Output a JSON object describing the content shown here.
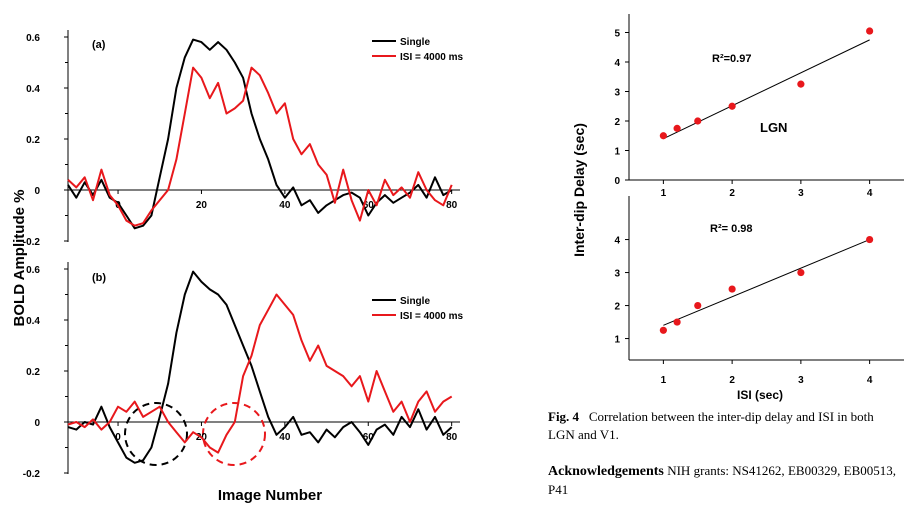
{
  "colors": {
    "single": "#000000",
    "isi": "#e8181c",
    "points": "#e8181c",
    "circle_black": "#000000",
    "circle_red": "#e8181c"
  },
  "left": {
    "ylabel": "BOLD Amplitude %",
    "xlabel": "Image Number",
    "panel_a": {
      "label": "(a)",
      "legend": [
        "Single",
        "ISI = 4000 ms"
      ],
      "yticks": [
        "0.6",
        "0.4",
        "0.2",
        "0",
        "-0.2"
      ],
      "xticks": [
        "0",
        "20",
        "40",
        "60",
        "80"
      ]
    },
    "panel_b": {
      "label": "(b)",
      "legend": [
        "Single",
        "ISI = 4000 ms"
      ],
      "yticks": [
        "0.6",
        "0.4",
        "0.2",
        "0",
        "-0.2"
      ],
      "xticks": [
        "0",
        "20",
        "40",
        "60",
        "80"
      ]
    }
  },
  "right": {
    "ylabel": "Inter-dip Delay (sec)",
    "xlabel": "ISI (sec)",
    "top": {
      "r2": "R²=0.97",
      "label": "LGN",
      "yticks": [
        "5",
        "4",
        "3",
        "2",
        "1",
        "0"
      ],
      "xticks": [
        "1",
        "2",
        "3",
        "4"
      ]
    },
    "bottom": {
      "r2": "R²= 0.98",
      "yticks": [
        "4",
        "3",
        "2",
        "1"
      ],
      "xticks": [
        "1",
        "2",
        "3",
        "4"
      ]
    }
  },
  "caption": {
    "fig": "Fig. 4",
    "text": "Correlation between the inter-dip delay and ISI in both LGN and V1."
  },
  "ack": {
    "title": "Acknowledgements",
    "text": "NIH grants: NS41262, EB00329, EB00513, P41"
  },
  "chart_data": [
    {
      "type": "line",
      "panel": "(a)",
      "ylabel": "BOLD Amplitude %",
      "xlabel": "Image Number",
      "xlim": [
        -12,
        82
      ],
      "ylim": [
        -0.22,
        0.65
      ],
      "series": [
        {
          "name": "Single",
          "color": "#000000",
          "x": [
            -12,
            -10,
            -8,
            -6,
            -4,
            -2,
            0,
            2,
            4,
            6,
            8,
            10,
            12,
            14,
            16,
            18,
            20,
            22,
            24,
            26,
            28,
            30,
            32,
            34,
            36,
            38,
            40,
            42,
            44,
            46,
            48,
            50,
            52,
            54,
            56,
            58,
            60,
            62,
            64,
            66,
            68,
            70,
            72,
            74,
            76,
            78,
            80
          ],
          "y": [
            0.02,
            -0.03,
            0.03,
            -0.02,
            0.04,
            -0.03,
            -0.05,
            -0.1,
            -0.15,
            -0.14,
            -0.1,
            0.05,
            0.2,
            0.4,
            0.52,
            0.59,
            0.58,
            0.55,
            0.58,
            0.55,
            0.5,
            0.44,
            0.3,
            0.2,
            0.12,
            0.02,
            -0.03,
            0.01,
            -0.06,
            -0.04,
            -0.09,
            -0.06,
            -0.04,
            -0.02,
            -0.01,
            -0.03,
            -0.1,
            -0.05,
            -0.02,
            -0.05,
            -0.03,
            -0.01,
            0.02,
            -0.03,
            0.05,
            -0.02,
            0.0
          ]
        },
        {
          "name": "ISI = 4000 ms",
          "color": "#e8181c",
          "x": [
            -12,
            -10,
            -8,
            -6,
            -4,
            -2,
            0,
            2,
            4,
            6,
            8,
            10,
            12,
            14,
            16,
            18,
            20,
            22,
            24,
            26,
            28,
            30,
            32,
            34,
            36,
            38,
            40,
            42,
            44,
            46,
            48,
            50,
            52,
            54,
            56,
            58,
            60,
            62,
            64,
            66,
            68,
            70,
            72,
            74,
            76,
            78,
            80
          ],
          "y": [
            0.04,
            0.01,
            0.05,
            -0.04,
            0.08,
            -0.02,
            -0.06,
            -0.12,
            -0.14,
            -0.13,
            -0.08,
            -0.04,
            0.0,
            0.12,
            0.3,
            0.48,
            0.44,
            0.36,
            0.42,
            0.3,
            0.32,
            0.35,
            0.48,
            0.45,
            0.38,
            0.3,
            0.34,
            0.2,
            0.14,
            0.18,
            0.1,
            0.06,
            -0.05,
            0.08,
            -0.04,
            -0.12,
            0.0,
            -0.06,
            0.04,
            -0.02,
            0.01,
            -0.03,
            0.07,
            0.0,
            -0.04,
            -0.06,
            0.02
          ]
        }
      ]
    },
    {
      "type": "line",
      "panel": "(b)",
      "ylabel": "BOLD Amplitude %",
      "xlabel": "Image Number",
      "xlim": [
        -12,
        82
      ],
      "ylim": [
        -0.22,
        0.65
      ],
      "series": [
        {
          "name": "Single",
          "color": "#000000",
          "x": [
            -12,
            -10,
            -8,
            -6,
            -4,
            -2,
            0,
            2,
            4,
            6,
            8,
            10,
            12,
            14,
            16,
            18,
            20,
            22,
            24,
            26,
            28,
            30,
            32,
            34,
            36,
            38,
            40,
            42,
            44,
            46,
            48,
            50,
            52,
            54,
            56,
            58,
            60,
            62,
            64,
            66,
            68,
            70,
            72,
            74,
            76,
            78,
            80
          ],
          "y": [
            -0.02,
            -0.03,
            0.0,
            -0.01,
            0.06,
            -0.02,
            -0.08,
            -0.14,
            -0.16,
            -0.15,
            -0.1,
            0.02,
            0.15,
            0.35,
            0.5,
            0.59,
            0.55,
            0.52,
            0.5,
            0.46,
            0.38,
            0.3,
            0.22,
            0.12,
            0.02,
            -0.05,
            -0.02,
            0.02,
            -0.05,
            -0.04,
            -0.08,
            -0.03,
            -0.06,
            -0.02,
            0.0,
            -0.04,
            -0.09,
            -0.03,
            -0.01,
            -0.05,
            0.02,
            -0.02,
            0.05,
            -0.03,
            0.02,
            -0.05,
            -0.02
          ]
        },
        {
          "name": "ISI = 4000 ms",
          "color": "#e8181c",
          "x": [
            -12,
            -10,
            -8,
            -6,
            -4,
            -2,
            0,
            2,
            4,
            6,
            8,
            10,
            12,
            14,
            16,
            18,
            20,
            22,
            24,
            26,
            28,
            30,
            32,
            34,
            36,
            38,
            40,
            42,
            44,
            46,
            48,
            50,
            52,
            54,
            56,
            58,
            60,
            62,
            64,
            66,
            68,
            70,
            72,
            74,
            76,
            78,
            80
          ],
          "y": [
            -0.01,
            0.0,
            -0.02,
            0.01,
            -0.03,
            0.0,
            0.06,
            0.04,
            0.08,
            0.02,
            0.04,
            0.06,
            0.0,
            -0.04,
            -0.08,
            -0.04,
            -0.06,
            -0.1,
            -0.12,
            -0.05,
            0.0,
            0.18,
            0.26,
            0.38,
            0.44,
            0.5,
            0.46,
            0.42,
            0.32,
            0.24,
            0.3,
            0.22,
            0.2,
            0.18,
            0.14,
            0.18,
            0.08,
            0.2,
            0.12,
            0.04,
            0.08,
            0.0,
            0.08,
            0.12,
            0.04,
            0.08,
            0.1
          ]
        }
      ]
    },
    {
      "type": "scatter",
      "panel": "LGN",
      "xlabel": "ISI (sec)",
      "ylabel": "Inter-dip Delay (sec)",
      "xlim": [
        0.5,
        4.5
      ],
      "ylim": [
        0,
        5.6
      ],
      "points": [
        [
          1.0,
          1.5
        ],
        [
          1.2,
          1.75
        ],
        [
          1.5,
          2.0
        ],
        [
          2.0,
          2.5
        ],
        [
          3.0,
          3.25
        ],
        [
          4.0,
          5.05
        ]
      ],
      "fit": [
        [
          1.0,
          1.4
        ],
        [
          4.0,
          4.75
        ]
      ],
      "annotation": "R²=0.97"
    },
    {
      "type": "scatter",
      "panel": "V1",
      "xlabel": "ISI (sec)",
      "ylabel": "Inter-dip Delay (sec)",
      "xlim": [
        0.5,
        4.5
      ],
      "ylim": [
        0,
        4.6
      ],
      "points": [
        [
          1.0,
          1.25
        ],
        [
          1.2,
          1.5
        ],
        [
          1.5,
          2.0
        ],
        [
          2.0,
          2.5
        ],
        [
          3.0,
          3.0
        ],
        [
          4.0,
          4.0
        ]
      ],
      "fit": [
        [
          1.0,
          1.4
        ],
        [
          4.0,
          4.0
        ]
      ],
      "annotation": "R²= 0.98"
    }
  ]
}
